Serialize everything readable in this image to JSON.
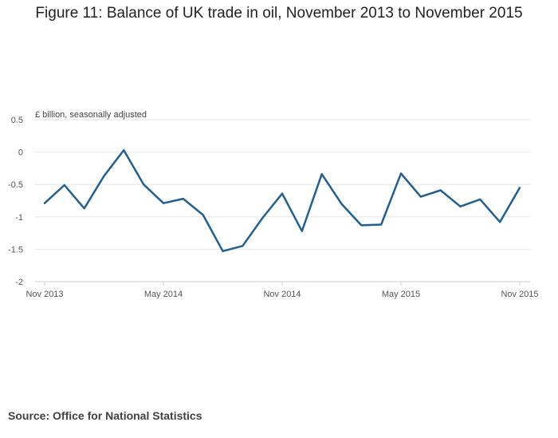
{
  "title": "Figure 11: Balance of UK trade in oil, November 2013 to November 2015",
  "source": "Source: Office for National Statistics",
  "colors": {
    "line": "#206095",
    "grid": "#e6e6e6",
    "axis": "#cccccc"
  },
  "chart_data": {
    "type": "line",
    "title": "Figure 11: Balance of UK trade in oil, November 2013 to November 2015",
    "ylabel": "£ billion, seasonally adjusted",
    "xlabel": "",
    "ylim": [
      -2,
      0.5
    ],
    "yticks": [
      0.5,
      0,
      -0.5,
      -1,
      -1.5,
      -2
    ],
    "ytick_labels": [
      "0.5",
      "0",
      "-0.5",
      "-1",
      "-1.5",
      "-2"
    ],
    "x": [
      "Nov 2013",
      "Dec 2013",
      "Jan 2014",
      "Feb 2014",
      "Mar 2014",
      "Apr 2014",
      "May 2014",
      "Jun 2014",
      "Jul 2014",
      "Aug 2014",
      "Sep 2014",
      "Oct 2014",
      "Nov 2014",
      "Dec 2014",
      "Jan 2015",
      "Feb 2015",
      "Mar 2015",
      "Apr 2015",
      "May 2015",
      "Jun 2015",
      "Jul 2015",
      "Aug 2015",
      "Sep 2015",
      "Oct 2015",
      "Nov 2015"
    ],
    "xtick_labels": [
      "Nov 2013",
      "May 2014",
      "Nov 2014",
      "May 2015",
      "Nov 2015"
    ],
    "xtick_index": [
      0,
      6,
      12,
      18,
      24
    ],
    "series": [
      {
        "values": [
          -0.79,
          -0.51,
          -0.87,
          -0.37,
          0.03,
          -0.5,
          -0.79,
          -0.72,
          -0.97,
          -1.53,
          -1.45,
          -1.02,
          -0.64,
          -1.22,
          -0.34,
          -0.8,
          -1.13,
          -1.12,
          -0.33,
          -0.69,
          -0.59,
          -0.84,
          -0.73,
          -1.08,
          -0.55
        ]
      }
    ],
    "grid": true,
    "legend": "none"
  }
}
